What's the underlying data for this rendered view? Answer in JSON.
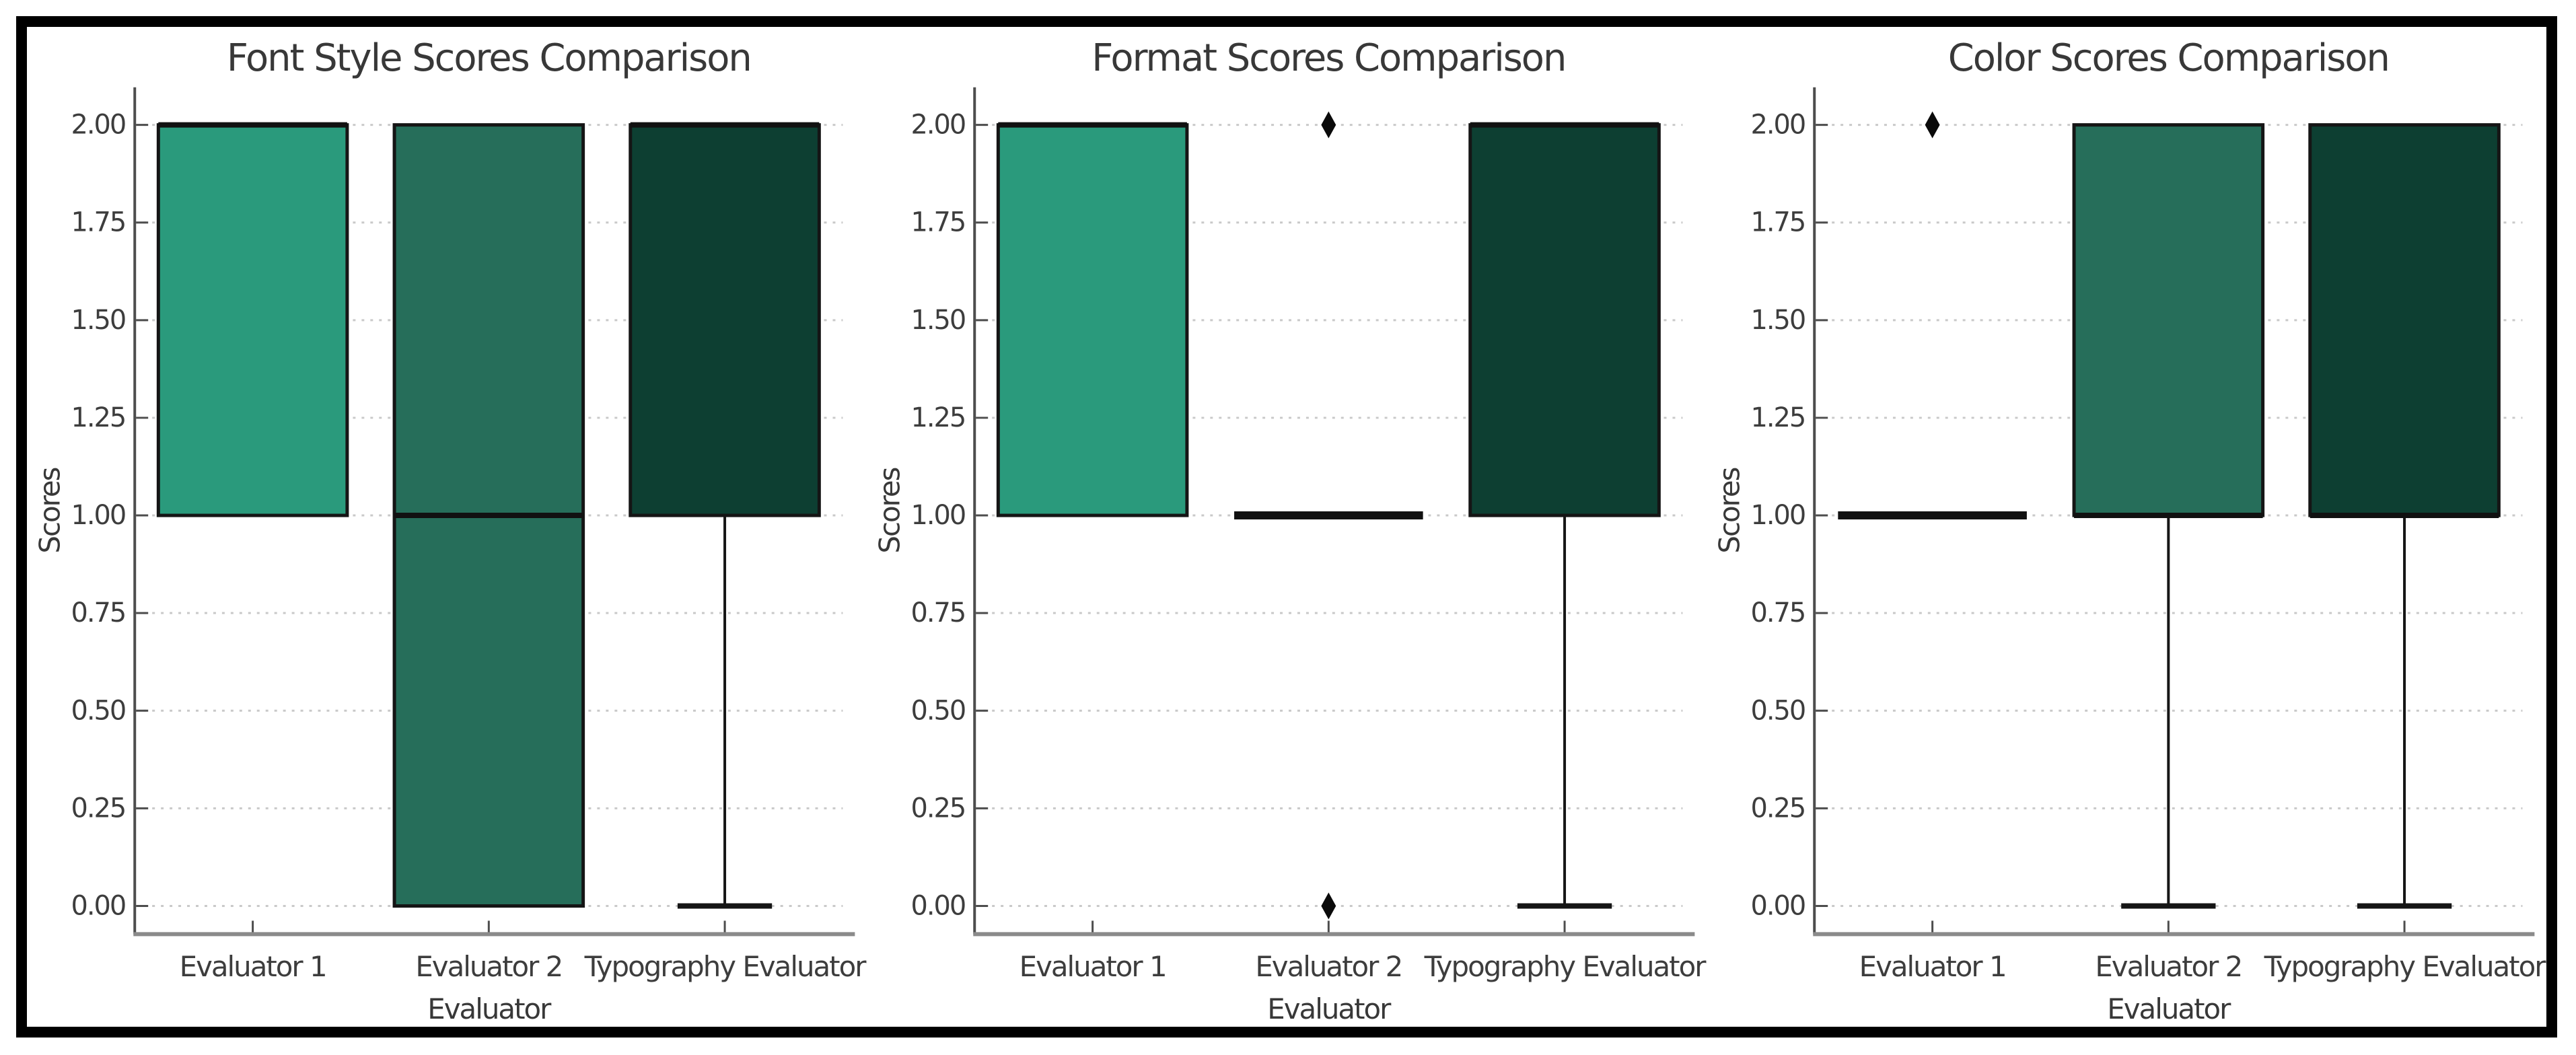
{
  "figure": {
    "background": "#ffffff",
    "frame_border_color": "#000000",
    "title_color": "#383838",
    "tick_label_color": "#3d3d3d",
    "axis_label_color": "#383838",
    "grid_color": "#c9c9c9",
    "box_edge_color": "#151515",
    "median_color": "#111111",
    "whisker_color": "#151515",
    "outlier_color": "#0a0a0a",
    "spine_left_color": "#4d4d4d",
    "spine_bottom_color": "#8a8a8a",
    "tick_mark_color": "#4d4d4d",
    "box_fill_colors": [
      "#2a9a7c",
      "#266e5a",
      "#0d3f32"
    ],
    "ylabel": "Scores",
    "xlabel": "Evaluator",
    "categories": [
      "Evaluator 1",
      "Evaluator 2",
      "Typography Evaluator"
    ],
    "ylim": [
      0,
      2
    ],
    "ytick_step": 0.25,
    "ytick_labels": [
      "0.00",
      "0.25",
      "0.50",
      "0.75",
      "1.00",
      "1.25",
      "1.50",
      "1.75",
      "2.00"
    ],
    "grid_visible": true
  },
  "chart_data": [
    {
      "type": "box",
      "title": "Font Style Scores Comparison",
      "xlabel": "Evaluator",
      "ylabel": "Scores",
      "categories": [
        "Evaluator 1",
        "Evaluator 2",
        "Typography Evaluator"
      ],
      "ylim": [
        0,
        2
      ],
      "boxes": [
        {
          "label": "Evaluator 1",
          "q1": 1.0,
          "median": 2.0,
          "q3": 2.0,
          "whisker_low": 1.0,
          "whisker_high": 2.0,
          "outliers": []
        },
        {
          "label": "Evaluator 2",
          "q1": 0.0,
          "median": 1.0,
          "q3": 2.0,
          "whisker_low": 0.0,
          "whisker_high": 2.0,
          "outliers": []
        },
        {
          "label": "Typography Evaluator",
          "q1": 1.0,
          "median": 2.0,
          "q3": 2.0,
          "whisker_low": 0.0,
          "whisker_high": 2.0,
          "outliers": []
        }
      ]
    },
    {
      "type": "box",
      "title": "Format Scores Comparison",
      "xlabel": "Evaluator",
      "ylabel": "Scores",
      "categories": [
        "Evaluator 1",
        "Evaluator 2",
        "Typography Evaluator"
      ],
      "ylim": [
        0,
        2
      ],
      "boxes": [
        {
          "label": "Evaluator 1",
          "q1": 1.0,
          "median": 2.0,
          "q3": 2.0,
          "whisker_low": 1.0,
          "whisker_high": 2.0,
          "outliers": []
        },
        {
          "label": "Evaluator 2",
          "q1": 1.0,
          "median": 1.0,
          "q3": 1.0,
          "whisker_low": 1.0,
          "whisker_high": 1.0,
          "outliers": [
            2.0,
            0.0
          ]
        },
        {
          "label": "Typography Evaluator",
          "q1": 1.0,
          "median": 2.0,
          "q3": 2.0,
          "whisker_low": 0.0,
          "whisker_high": 2.0,
          "outliers": []
        }
      ]
    },
    {
      "type": "box",
      "title": "Color Scores Comparison",
      "xlabel": "Evaluator",
      "ylabel": "Scores",
      "categories": [
        "Evaluator 1",
        "Evaluator 2",
        "Typography Evaluator"
      ],
      "ylim": [
        0,
        2
      ],
      "boxes": [
        {
          "label": "Evaluator 1",
          "q1": 1.0,
          "median": 1.0,
          "q3": 1.0,
          "whisker_low": 1.0,
          "whisker_high": 1.0,
          "outliers": [
            2.0
          ]
        },
        {
          "label": "Evaluator 2",
          "q1": 1.0,
          "median": 1.0,
          "q3": 2.0,
          "whisker_low": 0.0,
          "whisker_high": 2.0,
          "outliers": []
        },
        {
          "label": "Typography Evaluator",
          "q1": 1.0,
          "median": 1.0,
          "q3": 2.0,
          "whisker_low": 0.0,
          "whisker_high": 2.0,
          "outliers": []
        }
      ]
    }
  ]
}
